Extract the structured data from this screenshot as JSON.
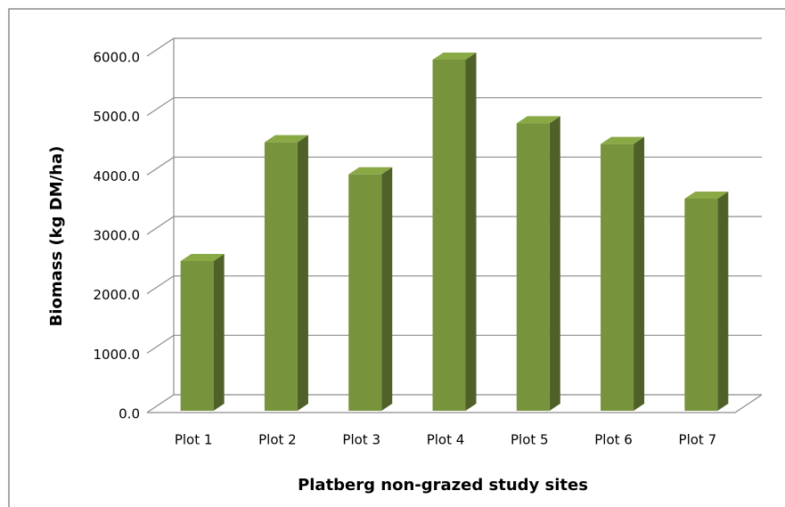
{
  "chart_data": {
    "type": "bar3d",
    "y_label": "Biomass (kg DM/ha)",
    "x_label": "Platberg non-grazed study sites",
    "categories": [
      "Plot 1",
      "Plot 2",
      "Plot 3",
      "Plot 4",
      "Plot 5",
      "Plot 6",
      "Plot 7"
    ],
    "values": [
      2550,
      4550,
      4010,
      5940,
      4870,
      4520,
      3600
    ],
    "color": "#77933c",
    "ylim": [
      0,
      6000
    ],
    "yticks": [
      {
        "value": 0,
        "label": "0.0"
      },
      {
        "value": 1000,
        "label": "1000.0"
      },
      {
        "value": 2000,
        "label": "2000.0"
      },
      {
        "value": 3000,
        "label": "3000.0"
      },
      {
        "value": 4000,
        "label": "4000.0"
      },
      {
        "value": 5000,
        "label": "5000.0"
      },
      {
        "value": 6000,
        "label": "6000.0"
      }
    ],
    "grid": true
  }
}
